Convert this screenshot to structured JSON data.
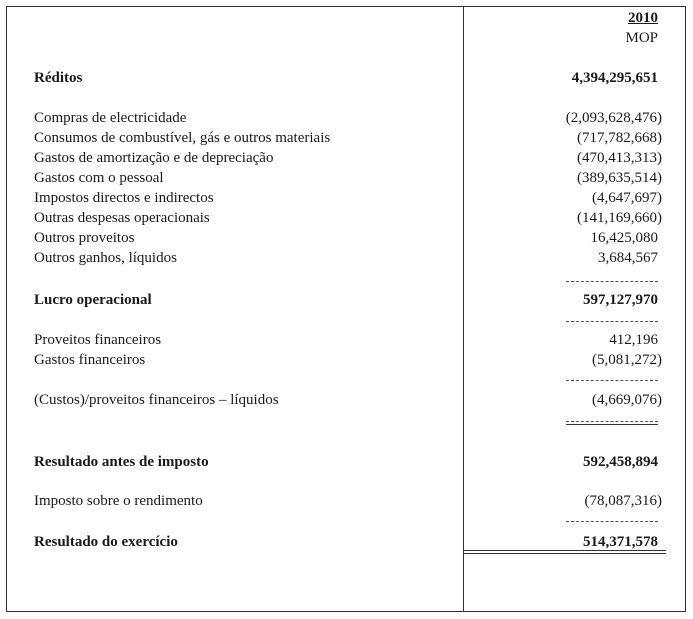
{
  "header": {
    "year": "2010",
    "currency": "MOP"
  },
  "rows": [
    {
      "label": "Réditos",
      "value": "4,394,295,651",
      "bold": true
    },
    {
      "label": "Compras de electricidade",
      "value": "(2,093,628,476)"
    },
    {
      "label": "Consumos de combustível, gás e outros materiais",
      "value": "(717,782,668)"
    },
    {
      "label": "Gastos de amortização e de depreciação",
      "value": "(470,413,313)"
    },
    {
      "label": "Gastos com o pessoal",
      "value": "(389,635,514)"
    },
    {
      "label": "Impostos directos e indirectos",
      "value": "(4,647,697)"
    },
    {
      "label": "Outras despesas operacionais",
      "value": "(141,169,660)"
    },
    {
      "label": "Outros proveitos",
      "value": "16,425,080"
    },
    {
      "label": "Outros ganhos, líquidos",
      "value": "3,684,567"
    },
    {
      "label": "Lucro operacional",
      "value": "597,127,970",
      "bold": true
    },
    {
      "label": "Proveitos financeiros",
      "value": "412,196"
    },
    {
      "label": "Gastos financeiros",
      "value": "(5,081,272)"
    },
    {
      "label": "(Custos)/proveitos financeiros – líquidos",
      "value": "(4,669,076)"
    },
    {
      "label": "Resultado antes de imposto",
      "value": "592,458,894",
      "bold": true
    },
    {
      "label": "Imposto sobre o rendimento",
      "value": "(78,087,316)"
    },
    {
      "label": "Resultado do exercício",
      "value": "514,371,578",
      "bold": true
    }
  ]
}
